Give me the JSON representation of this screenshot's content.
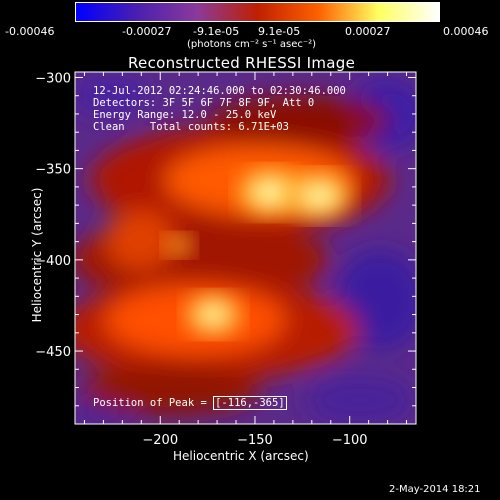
{
  "colorbar": {
    "tick_labels": [
      "-0.00046",
      "-0.00027",
      "-9.1e-05",
      "9.1e-05",
      "0.00027",
      "0.00046"
    ],
    "units": "(photons cm⁻² s⁻¹ asec⁻²)",
    "colors": [
      "#0000ff",
      "#4a1fb0",
      "#8a3a9a",
      "#c02000",
      "#ff6000",
      "#ffff60",
      "#ffffff"
    ]
  },
  "chart_data": {
    "type": "heatmap",
    "title": "Reconstructed RHESSI Image",
    "xlabel": "Heliocentric X (arcsec)",
    "ylabel": "Heliocentric Y (arcsec)",
    "xlim": [
      -245,
      -65
    ],
    "ylim": [
      -490,
      -297
    ],
    "x_ticks": [
      -200,
      -150,
      -100
    ],
    "y_ticks": [
      -300,
      -350,
      -400,
      -450
    ],
    "color_range": [
      -0.00046,
      0.00046
    ],
    "sources": [
      {
        "x": -142,
        "y": -363,
        "peak": 0.00046
      },
      {
        "x": -116,
        "y": -365,
        "peak": 0.00046
      },
      {
        "x": -172,
        "y": -430,
        "peak": 0.0004
      },
      {
        "x": -190,
        "y": -392,
        "peak": 0.00022
      }
    ]
  },
  "annotations": {
    "time_range": "12-Jul-2012 02:24:46.000 to 02:30:46.000",
    "detectors": "Detectors: 3F 5F 6F 7F 8F 9F, Att 0",
    "energy": "Energy Range: 12.0 - 25.0 keV",
    "method": "Clean    Total counts: 6.71E+03",
    "peak_label": "Position of Peak = ",
    "peak_value": "[-116,-365]"
  },
  "footer_date": "2-May-2014 18:21"
}
